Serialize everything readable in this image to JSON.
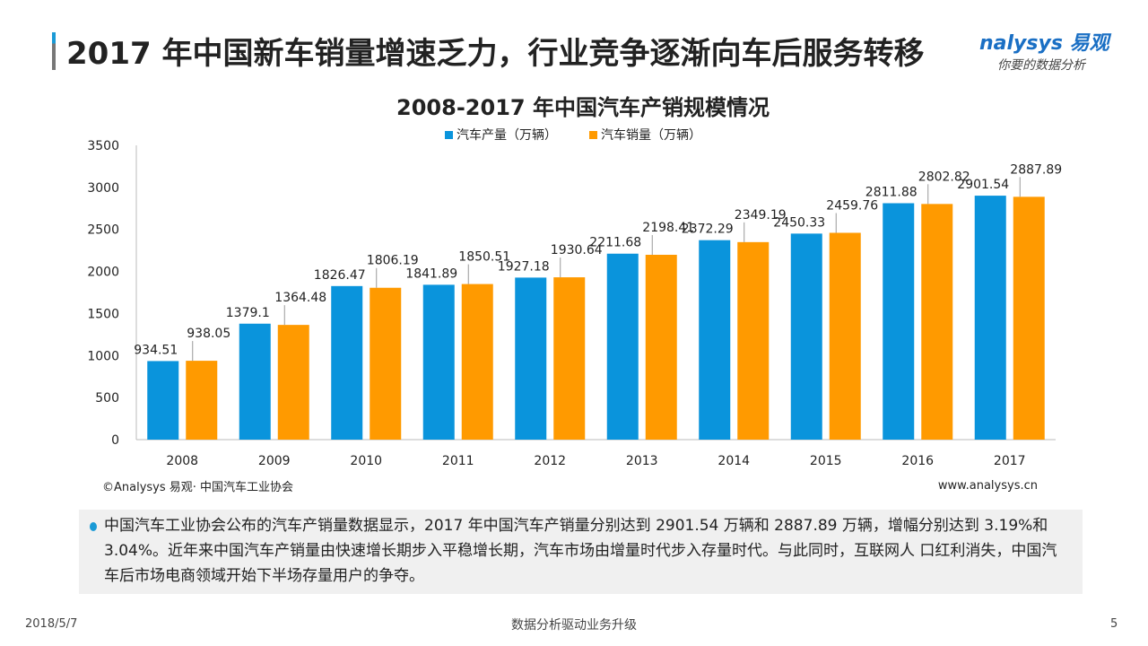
{
  "header": {
    "title": "2017 年中国新车销量增速乏力，行业竞争逐渐向车后服务转移",
    "logo_main": "nalysys 易观",
    "logo_sub": "你要的数据分析"
  },
  "chart_data": {
    "type": "bar",
    "title": "2008-2017 年中国汽车产销规模情况",
    "categories": [
      "2008",
      "2009",
      "2010",
      "2011",
      "2012",
      "2013",
      "2014",
      "2015",
      "2016",
      "2017"
    ],
    "series": [
      {
        "name": "汽车产量（万辆）",
        "color": "#0a94dc",
        "values": [
          934.51,
          1379.1,
          1826.47,
          1841.89,
          1927.18,
          2211.68,
          2372.29,
          2450.33,
          2811.88,
          2901.54
        ]
      },
      {
        "name": "汽车销量（万辆）",
        "color": "#ff9a00",
        "values": [
          938.05,
          1364.48,
          1806.19,
          1850.51,
          1930.64,
          2198.41,
          2349.19,
          2459.76,
          2802.82,
          2887.89
        ]
      }
    ],
    "ylim": [
      0,
      3500
    ],
    "yticks": [
      "0",
      "500",
      "1000",
      "1500",
      "2000",
      "2500",
      "3000",
      "3500"
    ],
    "xlabel": "",
    "ylabel": "",
    "legend": "top",
    "grid": false
  },
  "source": "©Analysys 易观· 中国汽车工业协会",
  "url": "www.analysys.cn",
  "note": "中国汽车工业协会公布的汽车产销量数据显示，2017 年中国汽车产销量分别达到 2901.54 万辆和 2887.89 万辆，增幅分别达到 3.19%和 3.04%。近年来中国汽车产销量由快速增长期步入平稳增长期，汽车市场由增量时代步入存量时代。与此同时，互联网人 口红利消失，中国汽车后市场电商领域开始下半场存量用户的争夺。",
  "footer": {
    "date": "2018/5/7",
    "slogan": "数据分析驱动业务升级",
    "page": "5"
  }
}
